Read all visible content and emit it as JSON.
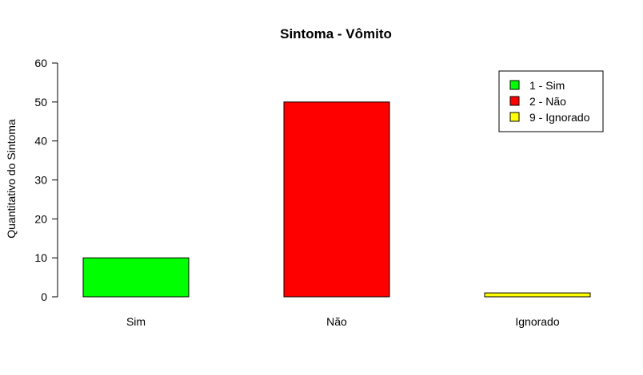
{
  "chart_data": {
    "type": "bar",
    "title": "Sintoma - Vômito",
    "xlabel": "",
    "ylabel": "Quantitativo do Sintoma",
    "categories": [
      "Sim",
      "Não",
      "Ignorado"
    ],
    "values": [
      10,
      50,
      1
    ],
    "colors": [
      "#00ff00",
      "#ff0000",
      "#ffff00"
    ],
    "ylim": [
      0,
      60
    ],
    "yticks": [
      0,
      10,
      20,
      30,
      40,
      50,
      60
    ],
    "grid": false,
    "legend": {
      "position": "top-right",
      "entries": [
        "1 - Sim",
        "2 - Não",
        "9 - Ignorado"
      ]
    }
  }
}
